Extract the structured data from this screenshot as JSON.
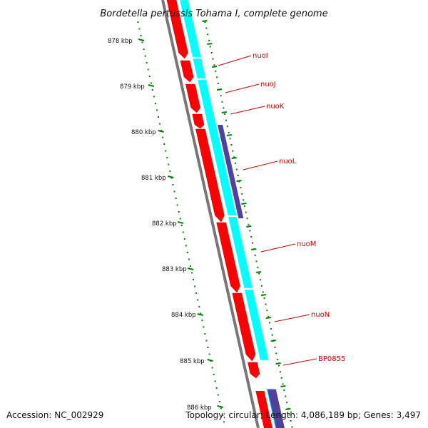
{
  "title": "Bordetella pertussis Tohama I, complete genome",
  "footer": {
    "accession": "Accession: NC_002929",
    "summary": "Topology: circular; Length: 4,086,189 bp; Genes: 3,497"
  },
  "ticks": [
    {
      "label": "878 kbp"
    },
    {
      "label": "879 kbp"
    },
    {
      "label": "880 kbp"
    },
    {
      "label": "881 kbp"
    },
    {
      "label": "882 kbp"
    },
    {
      "label": "883 kbp"
    },
    {
      "label": "884 kbp"
    },
    {
      "label": "885 kbp"
    },
    {
      "label": "886 kbp"
    }
  ],
  "genes": [
    {
      "label": "nuoI"
    },
    {
      "label": "nuoJ"
    },
    {
      "label": "nuoK"
    },
    {
      "label": "nuoL"
    },
    {
      "label": "nuoM"
    },
    {
      "label": "nuoN"
    },
    {
      "label": "BP0855"
    }
  ],
  "colors": {
    "gene_forward": "#ff0000",
    "cds_band": "#00ffff",
    "other_feature": "#5040a0",
    "backbone": "#888888",
    "tick_marks": "#008000",
    "gene_label": "#cc0000"
  }
}
